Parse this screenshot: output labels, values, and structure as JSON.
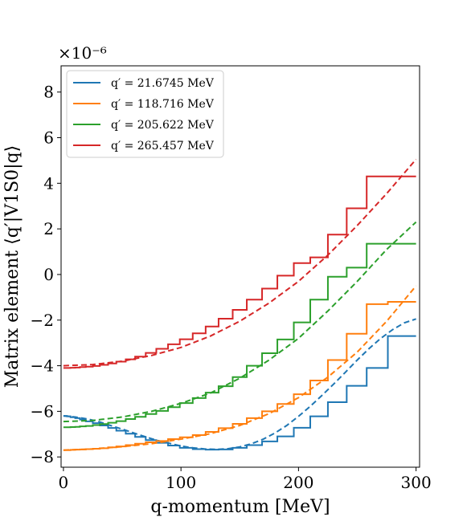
{
  "chart_data": {
    "type": "line",
    "xlabel": "q-momentum [MeV]",
    "ylabel": "Matrix element ⟨q′|V1S0|q⟩",
    "y_offset_text": "×10⁻⁶",
    "xlim": [
      -2,
      303
    ],
    "ylim": [
      -8.45,
      9.15
    ],
    "x_ticks": [
      0,
      100,
      200,
      300
    ],
    "x_tick_labels": [
      "0",
      "100",
      "200",
      "300"
    ],
    "y_ticks": [
      -8,
      -6,
      -4,
      -2,
      0,
      2,
      4,
      6,
      8
    ],
    "y_tick_labels": [
      "−8",
      "−6",
      "−4",
      "−2",
      "0",
      "2",
      "4",
      "6",
      "8"
    ],
    "grid": false,
    "legend_position": "top-left",
    "series": [
      {
        "name": "q′ = 21.6745 MeV",
        "color": "#1f77b4",
        "smooth": {
          "x": [
            0,
            10,
            20,
            30,
            40,
            50,
            60,
            70,
            80,
            90,
            100,
            110,
            120,
            130,
            140,
            150,
            160,
            170,
            180,
            190,
            200,
            210,
            220,
            230,
            240,
            250,
            260,
            270,
            280,
            290,
            300
          ],
          "y": [
            -6.2,
            -6.25,
            -6.33,
            -6.45,
            -6.62,
            -6.78,
            -6.95,
            -7.12,
            -7.28,
            -7.4,
            -7.52,
            -7.6,
            -7.65,
            -7.67,
            -7.64,
            -7.56,
            -7.42,
            -7.22,
            -6.95,
            -6.62,
            -6.22,
            -5.78,
            -5.3,
            -4.8,
            -4.28,
            -3.75,
            -3.25,
            -2.8,
            -2.42,
            -2.12,
            -1.95
          ]
        },
        "steps": {
          "edges": [
            0,
            3,
            6,
            10,
            14,
            19,
            25,
            31,
            38,
            45,
            53,
            61,
            70,
            79,
            89,
            99,
            110,
            121,
            132,
            144,
            156,
            169,
            182,
            196,
            210,
            225,
            241,
            258,
            276,
            300
          ],
          "values": [
            -6.2,
            -6.22,
            -6.26,
            -6.3,
            -6.36,
            -6.44,
            -6.52,
            -6.62,
            -6.73,
            -6.85,
            -6.98,
            -7.12,
            -7.26,
            -7.38,
            -7.5,
            -7.6,
            -7.66,
            -7.68,
            -7.67,
            -7.6,
            -7.48,
            -7.32,
            -7.1,
            -6.72,
            -6.22,
            -5.6,
            -4.88,
            -4.1,
            -2.7
          ]
        }
      },
      {
        "name": "q′ = 118.716 MeV",
        "color": "#ff7f0e",
        "smooth": {
          "x": [
            0,
            25,
            50,
            75,
            100,
            125,
            150,
            175,
            200,
            225,
            250,
            275,
            300
          ],
          "y": [
            -7.7,
            -7.65,
            -7.55,
            -7.42,
            -7.22,
            -6.98,
            -6.62,
            -6.1,
            -5.4,
            -4.5,
            -3.4,
            -2.05,
            -0.5
          ]
        },
        "steps": {
          "edges": [
            0,
            3,
            6,
            10,
            14,
            19,
            25,
            31,
            38,
            45,
            53,
            61,
            70,
            79,
            89,
            99,
            110,
            121,
            132,
            144,
            156,
            169,
            182,
            196,
            210,
            225,
            241,
            258,
            276,
            300
          ],
          "values": [
            -7.7,
            -7.7,
            -7.69,
            -7.68,
            -7.67,
            -7.66,
            -7.64,
            -7.62,
            -7.58,
            -7.54,
            -7.48,
            -7.42,
            -7.36,
            -7.3,
            -7.22,
            -7.14,
            -7.04,
            -6.9,
            -6.74,
            -6.55,
            -6.3,
            -6.0,
            -5.68,
            -5.25,
            -4.65,
            -3.75,
            -2.6,
            -1.3,
            -1.2
          ]
        }
      },
      {
        "name": "q′ = 205.622 MeV",
        "color": "#2ca02c",
        "smooth": {
          "x": [
            0,
            25,
            50,
            75,
            100,
            125,
            150,
            175,
            200,
            225,
            250,
            275,
            300
          ],
          "y": [
            -6.45,
            -6.4,
            -6.25,
            -6.0,
            -5.65,
            -5.2,
            -4.55,
            -3.75,
            -2.8,
            -1.6,
            -0.3,
            1.1,
            2.3
          ]
        },
        "steps": {
          "edges": [
            0,
            3,
            6,
            10,
            14,
            19,
            25,
            31,
            38,
            45,
            53,
            61,
            70,
            79,
            89,
            99,
            110,
            121,
            132,
            144,
            156,
            169,
            182,
            196,
            210,
            225,
            241,
            258,
            276,
            300
          ],
          "values": [
            -6.7,
            -6.7,
            -6.69,
            -6.68,
            -6.66,
            -6.64,
            -6.6,
            -6.56,
            -6.5,
            -6.43,
            -6.34,
            -6.24,
            -6.12,
            -5.98,
            -5.82,
            -5.64,
            -5.42,
            -5.18,
            -4.9,
            -4.5,
            -4.0,
            -3.45,
            -2.85,
            -2.1,
            -1.1,
            -0.1,
            0.3,
            1.35,
            1.35
          ]
        }
      },
      {
        "name": "q′ = 265.457 MeV",
        "color": "#d62728",
        "smooth": {
          "x": [
            0,
            25,
            50,
            75,
            100,
            125,
            150,
            175,
            200,
            225,
            250,
            275,
            300
          ],
          "y": [
            -4.0,
            -3.95,
            -3.8,
            -3.55,
            -3.2,
            -2.7,
            -2.05,
            -1.25,
            -0.3,
            0.85,
            2.15,
            3.55,
            5.05
          ]
        },
        "steps": {
          "edges": [
            0,
            3,
            6,
            10,
            14,
            19,
            25,
            31,
            38,
            45,
            53,
            61,
            70,
            79,
            89,
            99,
            110,
            121,
            132,
            144,
            156,
            169,
            182,
            196,
            210,
            225,
            241,
            258,
            276,
            300
          ],
          "values": [
            -4.1,
            -4.1,
            -4.09,
            -4.08,
            -4.06,
            -4.04,
            -4.01,
            -3.96,
            -3.9,
            -3.82,
            -3.72,
            -3.6,
            -3.44,
            -3.26,
            -3.06,
            -2.84,
            -2.58,
            -2.28,
            -1.94,
            -1.55,
            -1.1,
            -0.62,
            -0.05,
            0.5,
            0.75,
            1.75,
            2.9,
            4.3,
            4.3
          ]
        }
      }
    ]
  }
}
